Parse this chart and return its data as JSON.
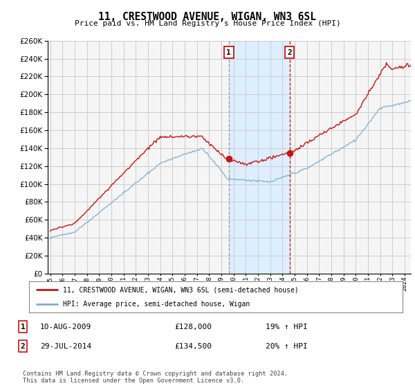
{
  "title": "11, CRESTWOOD AVENUE, WIGAN, WN3 6SL",
  "subtitle": "Price paid vs. HM Land Registry's House Price Index (HPI)",
  "sale1_x": 2009.61,
  "sale1_price": 128000,
  "sale2_x": 2014.58,
  "sale2_price": 134500,
  "legend_line1": "11, CRESTWOOD AVENUE, WIGAN, WN3 6SL (semi-detached house)",
  "legend_line2": "HPI: Average price, semi-detached house, Wigan",
  "footnote": "Contains HM Land Registry data © Crown copyright and database right 2024.\nThis data is licensed under the Open Government Licence v3.0.",
  "hpi_color": "#7bafd4",
  "price_color": "#cc1111",
  "shade_color": "#ddeeff",
  "background_color": "#f5f5f5",
  "grid_color": "#cccccc",
  "ylim": [
    0,
    260000
  ],
  "xlim_start": 1994.8,
  "xlim_end": 2024.5,
  "sale1_vline_color": "#aaaaaa",
  "sale2_vline_color": "#cc1111"
}
